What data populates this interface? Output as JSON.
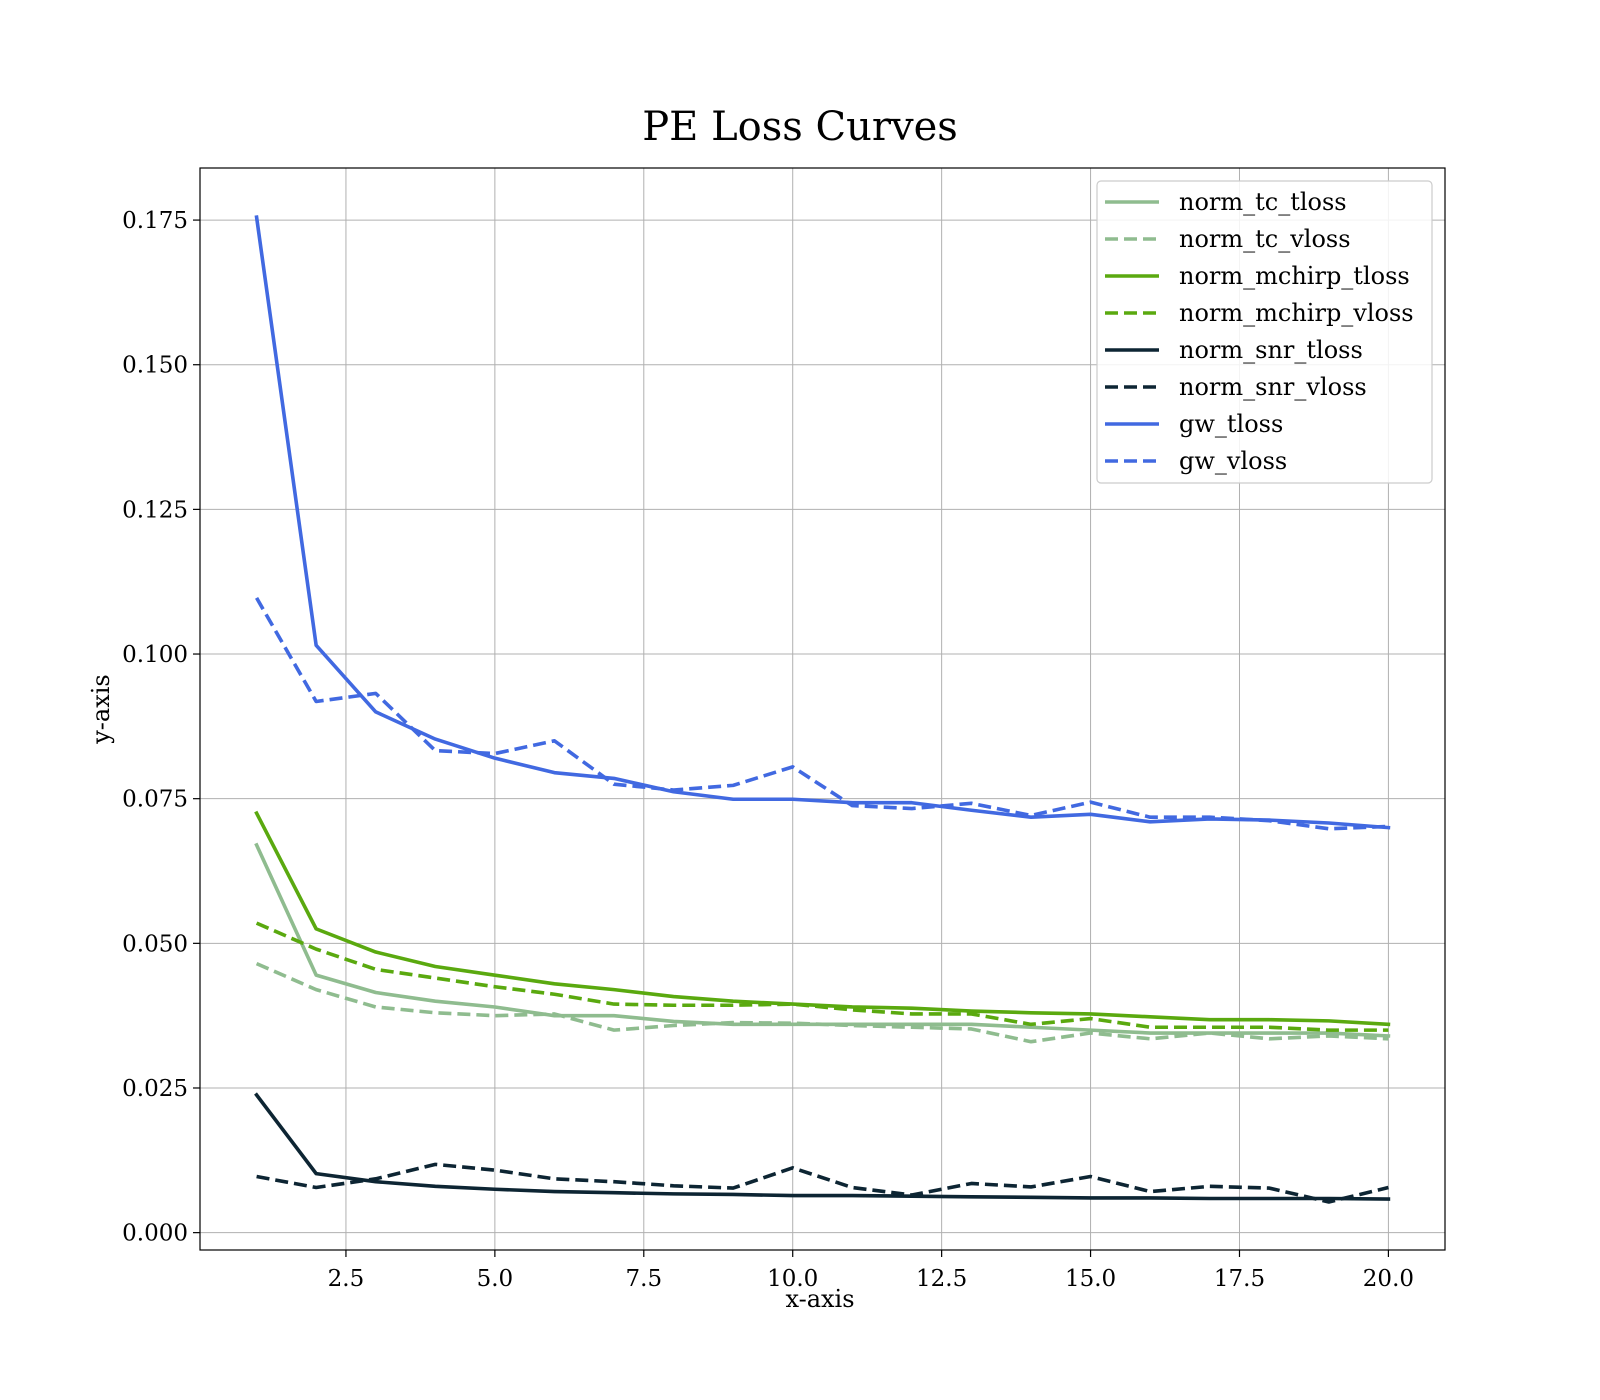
{
  "chart_data": {
    "type": "line",
    "title": "PE Loss Curves",
    "xlabel": "x-axis",
    "ylabel": "y-axis",
    "xlim": [
      0.05,
      20.95
    ],
    "ylim": [
      -0.003,
      0.184
    ],
    "xticks": [
      2.5,
      5.0,
      7.5,
      10.0,
      12.5,
      15.0,
      17.5,
      20.0
    ],
    "xtick_labels": [
      "2.5",
      "5.0",
      "7.5",
      "10.0",
      "12.5",
      "15.0",
      "17.5",
      "20.0"
    ],
    "yticks": [
      0.0,
      0.025,
      0.05,
      0.075,
      0.1,
      0.125,
      0.15,
      0.175
    ],
    "ytick_labels": [
      "0.000",
      "0.025",
      "0.050",
      "0.075",
      "0.100",
      "0.125",
      "0.150",
      "0.175"
    ],
    "grid": true,
    "legend_position": "top-right",
    "x": [
      1,
      2,
      3,
      4,
      5,
      6,
      7,
      8,
      9,
      10,
      11,
      12,
      13,
      14,
      15,
      16,
      17,
      18,
      19,
      20
    ],
    "series": [
      {
        "name": "norm_tc_tloss",
        "color": "#8fbc8f",
        "dashed": false,
        "values": [
          0.067,
          0.0445,
          0.0415,
          0.04,
          0.039,
          0.0375,
          0.0375,
          0.0365,
          0.036,
          0.036,
          0.036,
          0.036,
          0.036,
          0.0355,
          0.035,
          0.0345,
          0.0345,
          0.0345,
          0.0345,
          0.034
        ]
      },
      {
        "name": "norm_tc_vloss",
        "color": "#8fbc8f",
        "dashed": true,
        "values": [
          0.0465,
          0.042,
          0.039,
          0.038,
          0.0375,
          0.0378,
          0.035,
          0.0358,
          0.0363,
          0.0362,
          0.0358,
          0.0355,
          0.0352,
          0.033,
          0.0345,
          0.0335,
          0.0345,
          0.0335,
          0.034,
          0.0335
        ]
      },
      {
        "name": "norm_mchirp_tloss",
        "color": "#5aa90f",
        "dashed": false,
        "values": [
          0.0725,
          0.0525,
          0.0485,
          0.046,
          0.0445,
          0.043,
          0.042,
          0.0408,
          0.04,
          0.0395,
          0.039,
          0.0388,
          0.0383,
          0.038,
          0.0378,
          0.0373,
          0.0368,
          0.0368,
          0.0366,
          0.036
        ]
      },
      {
        "name": "norm_mchirp_vloss",
        "color": "#5aa90f",
        "dashed": true,
        "values": [
          0.0535,
          0.049,
          0.0455,
          0.044,
          0.0425,
          0.0412,
          0.0395,
          0.0393,
          0.0393,
          0.0395,
          0.0385,
          0.0378,
          0.0378,
          0.036,
          0.037,
          0.0355,
          0.0355,
          0.0355,
          0.035,
          0.035
        ]
      },
      {
        "name": "norm_snr_tloss",
        "color": "#0d2533",
        "dashed": false,
        "values": [
          0.0238,
          0.0102,
          0.0088,
          0.008,
          0.0075,
          0.0071,
          0.0069,
          0.0067,
          0.0066,
          0.0064,
          0.0064,
          0.0063,
          0.0062,
          0.0061,
          0.006,
          0.006,
          0.0059,
          0.0059,
          0.0059,
          0.0058
        ]
      },
      {
        "name": "norm_snr_vloss",
        "color": "#0d2533",
        "dashed": true,
        "values": [
          0.0097,
          0.0078,
          0.0093,
          0.0118,
          0.0108,
          0.0093,
          0.0088,
          0.0081,
          0.0077,
          0.0112,
          0.0078,
          0.0065,
          0.0085,
          0.0079,
          0.0097,
          0.0071,
          0.008,
          0.0077,
          0.0053,
          0.0078
        ]
      },
      {
        "name": "gw_tloss",
        "color": "#4169e1",
        "dashed": false,
        "values": [
          0.1755,
          0.1015,
          0.09,
          0.0853,
          0.082,
          0.0795,
          0.0785,
          0.0762,
          0.0749,
          0.0749,
          0.0743,
          0.0743,
          0.073,
          0.0718,
          0.0723,
          0.071,
          0.0715,
          0.0713,
          0.0708,
          0.07
        ]
      },
      {
        "name": "gw_vloss",
        "color": "#4169e1",
        "dashed": true,
        "values": [
          0.1097,
          0.0918,
          0.0932,
          0.0833,
          0.0828,
          0.085,
          0.0775,
          0.0765,
          0.0773,
          0.0805,
          0.0738,
          0.0733,
          0.0742,
          0.0721,
          0.0744,
          0.0718,
          0.0718,
          0.0712,
          0.0698,
          0.0702
        ]
      }
    ]
  }
}
